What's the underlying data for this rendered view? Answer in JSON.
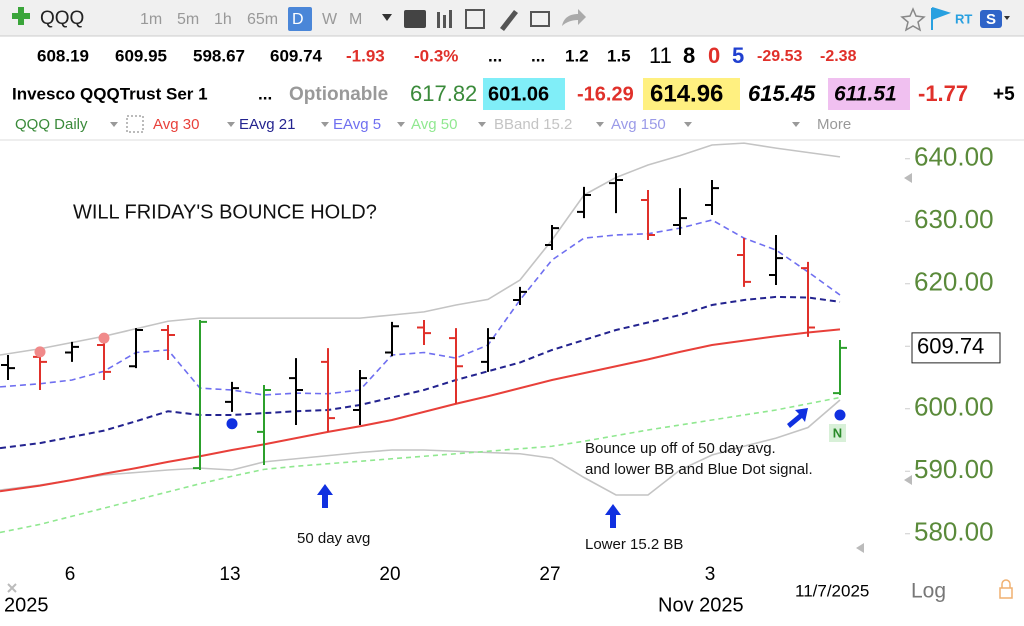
{
  "header": {
    "symbol": "QQQ",
    "intervals": [
      "1m",
      "5m",
      "1h",
      "65m",
      "D",
      "W",
      "M"
    ],
    "rt": "RT",
    "quote_row": [
      "608.19",
      "609.95",
      "598.67",
      "609.74",
      "-1.93",
      "-0.3%",
      "...",
      "...",
      "1.2",
      "1.5",
      "11",
      "8",
      "0",
      "5",
      "-29.53",
      "-2.38"
    ],
    "info_row": [
      "Invesco QQQTrust Ser 1",
      "...",
      "Optionable",
      "617.82",
      "601.06",
      "-16.29",
      "614.96",
      "615.45",
      "611.51",
      "-1.77",
      "+5"
    ]
  },
  "chart_data": {
    "type": "ohlc",
    "symbol_label": "QQQ Daily",
    "more_label": "More",
    "categories": [
      null,
      null,
      "6",
      null,
      null,
      null,
      null,
      "13",
      null,
      null,
      null,
      null,
      "20",
      null,
      null,
      null,
      null,
      "27",
      null,
      null,
      null,
      null,
      "3",
      null,
      null,
      null,
      null
    ],
    "period_labels": [
      "2025",
      "Nov 2025"
    ],
    "date_label": "11/7/2025",
    "scale_label": "Log",
    "open": [
      607,
      608.3,
      609,
      610.2,
      606.8,
      612.6,
      590.5,
      601.1,
      596.3,
      604.9,
      607.5,
      599.8,
      609,
      613,
      611.3,
      607.5,
      617.4,
      626.2,
      631.5,
      636.1,
      633.4,
      629.4,
      632.6,
      624.6,
      621.4,
      622.5,
      602.5
    ],
    "high": [
      608.6,
      609.4,
      610.7,
      611,
      612.9,
      613.4,
      614.2,
      604.3,
      603.8,
      608.1,
      609.7,
      606.2,
      613.9,
      614.2,
      612.9,
      612.9,
      619.5,
      629.4,
      635.5,
      637.7,
      635,
      635.3,
      636.6,
      627.3,
      627.8,
      623.5,
      611
    ],
    "low": [
      604.6,
      603,
      607.5,
      604.6,
      606.5,
      607.8,
      590.2,
      599.5,
      591,
      597.4,
      596.3,
      597.4,
      608.4,
      610.2,
      600.8,
      605.9,
      616.6,
      625.4,
      630.5,
      631.3,
      627,
      627.8,
      631,
      619.5,
      619.8,
      611.5,
      602.2
    ],
    "close": [
      606.5,
      607.5,
      609.9,
      605.9,
      612.6,
      611.8,
      613.9,
      603.3,
      603,
      603,
      598.5,
      604.9,
      613.2,
      612.1,
      606.8,
      611.3,
      618.7,
      628.9,
      634.2,
      636.6,
      627.8,
      630.5,
      635.3,
      620.3,
      624.1,
      613,
      609.74
    ],
    "bar_colors": [
      "#000",
      "#e0302a",
      "#000",
      "#e0302a",
      "#000",
      "#e0302a",
      "#2ca02c",
      "#000",
      "#2ca02c",
      "#000",
      "#e0302a",
      "#000",
      "#000",
      "#e0302a",
      "#e0302a",
      "#000",
      "#000",
      "#000",
      "#000",
      "#000",
      "#e0302a",
      "#000",
      "#000",
      "#e0302a",
      "#000",
      "#e0302a",
      "#2ca02c"
    ],
    "series": [
      {
        "name": "Avg 30",
        "color": "#e8403a",
        "values": [
          586.8,
          587.7,
          588.6,
          589.6,
          590.5,
          591.5,
          592.4,
          593.4,
          594.3,
          595.3,
          596.3,
          597.2,
          598.2,
          599.5,
          600.8,
          602,
          603.3,
          604.6,
          605.7,
          606.8,
          607.9,
          609.1,
          610.2,
          610.9,
          611.6,
          612.2,
          612.7
        ]
      },
      {
        "name": "EAvg 21",
        "color": "#23238f",
        "values": [
          593.7,
          594.5,
          595.5,
          596.5,
          598,
          599.6,
          599,
          599,
          599.3,
          599.6,
          599.8,
          600.6,
          601.8,
          603,
          604.6,
          606,
          607.4,
          609.4,
          611,
          612.6,
          613.8,
          615,
          616.6,
          617.4,
          617.9,
          617.8,
          617.1
        ]
      },
      {
        "name": "EAvg 5",
        "color": "#6f6ff0",
        "values": [
          603.5,
          604,
          604.6,
          606,
          609,
          609.4,
          603.3,
          603,
          602.2,
          602.5,
          602.4,
          603,
          608.6,
          609,
          608.1,
          610.2,
          617.4,
          623.8,
          627.3,
          627.8,
          628,
          628.9,
          630.2,
          627.3,
          625.4,
          621.9,
          618.2
        ]
      },
      {
        "name": "Avg 50",
        "color": "#90e890",
        "values": [
          580.2,
          581.5,
          582.8,
          584.1,
          585.4,
          586.7,
          588,
          589.2,
          590.3,
          590.8,
          591.2,
          591.6,
          592,
          592.4,
          592.8,
          593.2,
          593.6,
          594,
          594.8,
          595.7,
          596.6,
          597.4,
          598.2,
          599,
          599.8,
          600.8,
          601.8
        ]
      },
      {
        "name": "BBand 15.2",
        "color": "#c4c4c4",
        "values": [
          608.6,
          609.6,
          610.6,
          611.6,
          612.8,
          614,
          614.5,
          614.5,
          614.5,
          614.5,
          614.5,
          614.5,
          615,
          615.5,
          616.6,
          617.5,
          620.6,
          627,
          634.2,
          637,
          639,
          640.5,
          642.2,
          642.5,
          641.7,
          641,
          640.3
        ],
        "lower_values": [
          587,
          587.8,
          588.6,
          589.4,
          589.8,
          590.2,
          590.5,
          590.2,
          591.5,
          592,
          592.5,
          593,
          593.4,
          593.4,
          593.2,
          593,
          592.8,
          592.1,
          589,
          586.2,
          586.2,
          590.2,
          592.6,
          594,
          595.3,
          597,
          601.4
        ]
      }
    ],
    "hidden_indicators": [
      {
        "name": "Avg 150",
        "color": "#9a9ae8"
      }
    ],
    "markers": [
      {
        "index": 1,
        "value": 609.1,
        "color": "#f08a8a"
      },
      {
        "index": 3,
        "value": 611.3,
        "color": "#f08a8a"
      },
      {
        "index": 7,
        "value": 597.6,
        "color": "#1030e0"
      },
      {
        "index": 26,
        "value": 599,
        "color": "#1030e0"
      }
    ],
    "last_price": {
      "value": 609.74,
      "label": "609.74"
    },
    "ylim": [
      571,
      643
    ],
    "yticks": [
      {
        "value": 640,
        "label": "640.00"
      },
      {
        "value": 630,
        "label": "630.00"
      },
      {
        "value": 620,
        "label": "620.00"
      },
      {
        "value": 610,
        "label": "610.00"
      },
      {
        "value": 600,
        "label": "600.00"
      },
      {
        "value": 590,
        "label": "590.00"
      },
      {
        "value": 580,
        "label": "580.00"
      }
    ],
    "title": "WILL FRIDAY'S BOUNCE HOLD?",
    "annotations": [
      "50 day avg",
      "Lower 15.2 BB",
      "Bounce up off of 50 day avg.",
      "and lower BB and Blue Dot signal."
    ],
    "signal": "N"
  }
}
